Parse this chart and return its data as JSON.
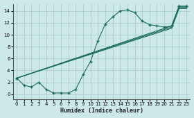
{
  "xlabel": "Humidex (Indice chaleur)",
  "bg_color": "#cde8e8",
  "grid_color": "#aacccc",
  "line_color": "#1a6b5a",
  "xlim": [
    -0.5,
    23.5
  ],
  "ylim": [
    -0.8,
    15.2
  ],
  "xticks": [
    0,
    1,
    2,
    3,
    4,
    5,
    6,
    7,
    8,
    9,
    10,
    11,
    12,
    13,
    14,
    15,
    16,
    17,
    18,
    19,
    20,
    21,
    22,
    23
  ],
  "yticks": [
    0,
    2,
    4,
    6,
    8,
    10,
    12,
    14
  ],
  "curve1_x": [
    0,
    1,
    2,
    3,
    4,
    5,
    6,
    7,
    8,
    9,
    10,
    11,
    12,
    13,
    14,
    15,
    16,
    17,
    18,
    19,
    20,
    21,
    22,
    23
  ],
  "curve1_y": [
    2.7,
    1.5,
    1.2,
    2.0,
    0.8,
    0.2,
    0.2,
    0.2,
    0.8,
    3.3,
    5.5,
    9.0,
    11.8,
    13.0,
    14.0,
    14.2,
    13.7,
    12.3,
    11.7,
    11.5,
    11.3,
    11.5,
    14.8,
    14.8
  ],
  "line2_x": [
    0,
    21,
    22,
    23
  ],
  "line2_y": [
    2.7,
    11.5,
    14.8,
    14.8
  ],
  "line3_x": [
    0,
    21,
    22,
    23
  ],
  "line3_y": [
    2.7,
    11.3,
    14.6,
    14.6
  ],
  "line4_x": [
    0,
    21,
    22,
    23
  ],
  "line4_y": [
    2.7,
    11.1,
    14.4,
    14.4
  ]
}
